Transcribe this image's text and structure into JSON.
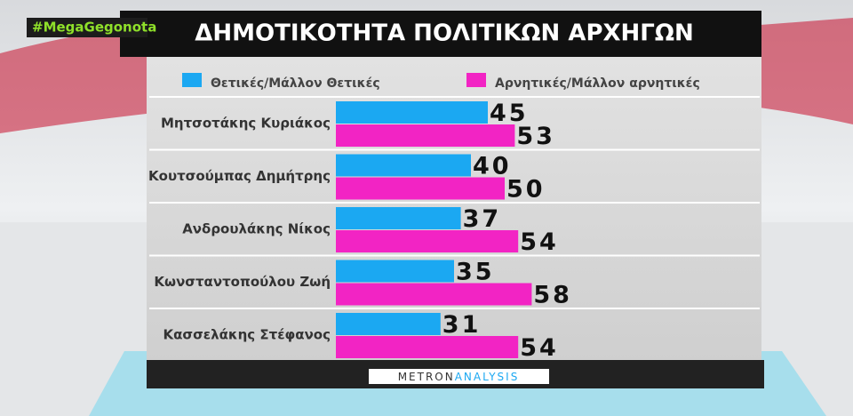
{
  "hashtag": "#MegaGegonota",
  "logo": [
    "METRON",
    "ANALYSIS"
  ],
  "chart_data": {
    "type": "bar",
    "orientation": "horizontal",
    "title": "ΔΗΜΟΤΙΚΟΤΗΤΑ ΠΟΛΙΤΙΚΩΝ ΑΡΧΗΓΩΝ",
    "categories": [
      "Μητσοτάκης Κυριάκος",
      "Κουτσούμπας Δημήτρης",
      "Ανδρουλάκης Νίκος",
      "Κωνσταντοπούλου Ζωή",
      "Κασσελάκης Στέφανος"
    ],
    "series": [
      {
        "name": "Θετικές/Μάλλον Θετικές",
        "color": "#1ba8f2",
        "values": [
          45,
          40,
          37,
          35,
          31
        ]
      },
      {
        "name": "Αρνητικές/Μάλλον αρνητικές",
        "color": "#f224c4",
        "values": [
          53,
          50,
          54,
          58,
          54
        ]
      }
    ]
  }
}
